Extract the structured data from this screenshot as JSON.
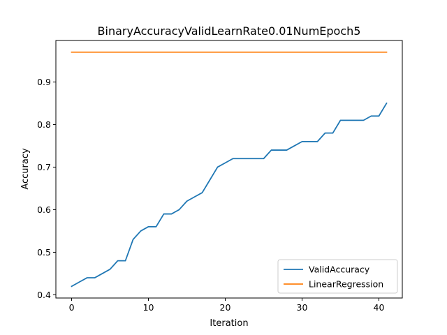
{
  "chart_data": {
    "type": "line",
    "title": "BinaryAccuracyValidLearnRate0.01NumEpoch5",
    "xlabel": "Iteration",
    "ylabel": "Accuracy",
    "xlim": [
      -2.05,
      43.05
    ],
    "ylim": [
      0.3925,
      0.9975
    ],
    "xticks": [
      0,
      10,
      20,
      30,
      40
    ],
    "yticks": [
      0.4,
      0.5,
      0.6,
      0.7,
      0.8,
      0.9
    ],
    "grid": false,
    "legend_position": "lower-right",
    "series": [
      {
        "name": "ValidAccuracy",
        "color": "#1f77b4",
        "x": [
          0,
          1,
          2,
          3,
          4,
          5,
          6,
          7,
          8,
          9,
          10,
          11,
          12,
          13,
          14,
          15,
          16,
          17,
          18,
          19,
          20,
          21,
          22,
          23,
          24,
          25,
          26,
          27,
          28,
          29,
          30,
          31,
          32,
          33,
          34,
          35,
          36,
          37,
          38,
          39,
          40,
          41
        ],
        "values": [
          0.42,
          0.43,
          0.44,
          0.44,
          0.45,
          0.46,
          0.48,
          0.48,
          0.53,
          0.55,
          0.56,
          0.56,
          0.59,
          0.59,
          0.6,
          0.62,
          0.63,
          0.64,
          0.67,
          0.7,
          0.71,
          0.72,
          0.72,
          0.72,
          0.72,
          0.72,
          0.74,
          0.74,
          0.74,
          0.75,
          0.76,
          0.76,
          0.76,
          0.78,
          0.78,
          0.81,
          0.81,
          0.81,
          0.81,
          0.82,
          0.82,
          0.85
        ]
      },
      {
        "name": "LinearRegression",
        "color": "#ff7f0e",
        "x": [
          0,
          41
        ],
        "values": [
          0.97,
          0.97
        ]
      }
    ]
  }
}
